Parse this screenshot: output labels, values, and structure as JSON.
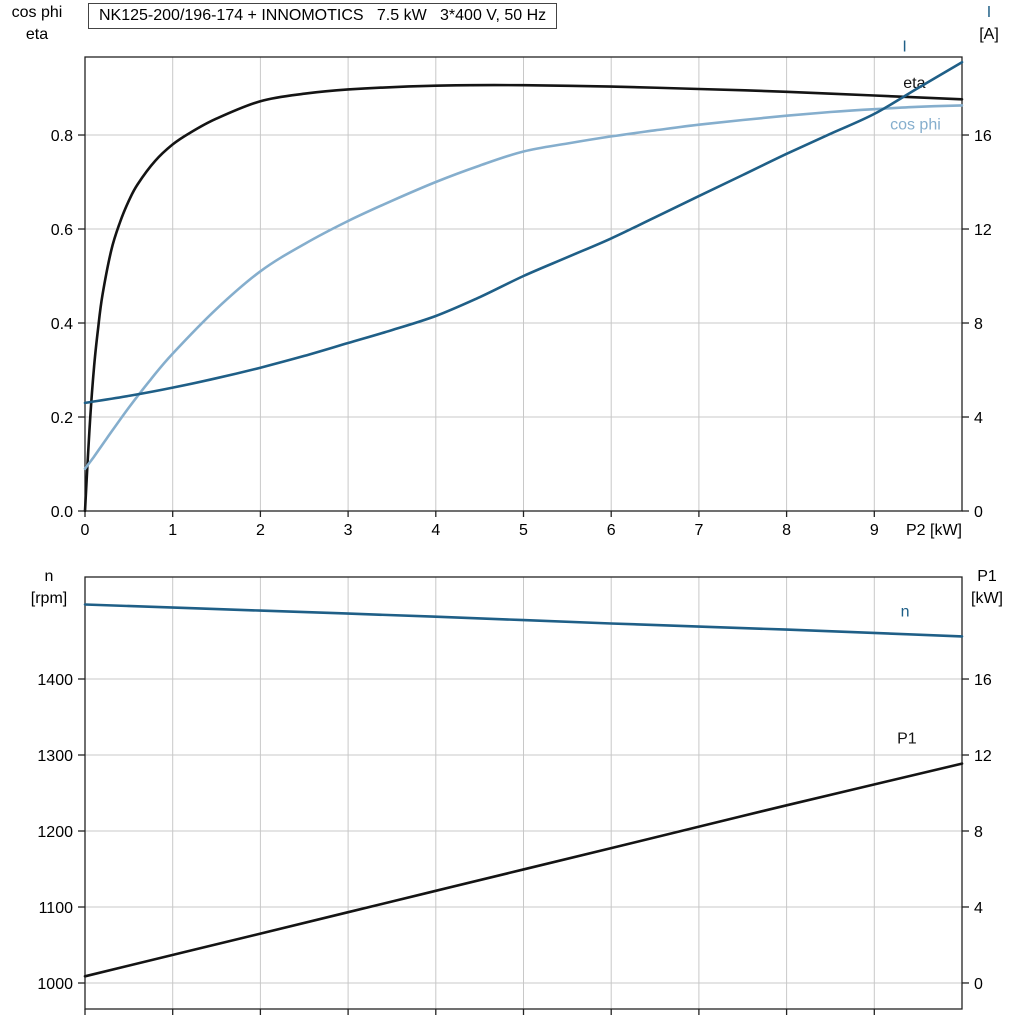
{
  "colors": {
    "black": "#141414",
    "dark_blue": "#1f5f87",
    "light_blue": "#85aecd",
    "grid": "#c8c8c8",
    "frame": "#222222"
  },
  "chart_data": [
    {
      "type": "line",
      "title": "NK125-200/196-174 + INNOMOTICS   7.5 kW   3*400 V, 50 Hz",
      "x_axis": {
        "label": "P2 [kW]",
        "range": [
          0,
          10
        ],
        "ticks": [
          0,
          1,
          2,
          3,
          4,
          5,
          6,
          7,
          8,
          9
        ],
        "show_tick_labels": true
      },
      "left_axis": {
        "label": "cos phi / eta",
        "label_lines": [
          "cos phi",
          "eta"
        ],
        "range": [
          0,
          0.966
        ],
        "ticks": [
          0.0,
          0.2,
          0.4,
          0.6,
          0.8
        ],
        "decimals": 1
      },
      "right_axis": {
        "label": "I [A]",
        "label_lines": [
          "I",
          "[A]"
        ],
        "range": [
          0,
          19.32
        ],
        "ticks": [
          0,
          4,
          8,
          12,
          16
        ],
        "decimals": 0
      },
      "grid": true,
      "legend_position": "right-inline",
      "series": [
        {
          "name": "eta",
          "label": "eta",
          "axis": "left",
          "color": "#141414",
          "x": [
            0,
            0.05,
            0.1,
            0.15,
            0.2,
            0.3,
            0.4,
            0.5,
            0.6,
            0.8,
            1,
            1.2,
            1.5,
            2,
            2.5,
            3,
            4,
            5,
            6,
            7,
            8,
            9,
            10
          ],
          "y": [
            0,
            0.17,
            0.3,
            0.39,
            0.46,
            0.555,
            0.615,
            0.66,
            0.695,
            0.745,
            0.78,
            0.805,
            0.835,
            0.872,
            0.888,
            0.897,
            0.905,
            0.906,
            0.903,
            0.898,
            0.892,
            0.884,
            0.876
          ],
          "label_at": [
            9.33,
            0.9
          ]
        },
        {
          "name": "cos-phi",
          "label": "cos phi",
          "axis": "left",
          "color": "#85aecd",
          "x": [
            0,
            0.1,
            0.25,
            0.5,
            0.75,
            1,
            1.5,
            2,
            2.5,
            3,
            3.5,
            4,
            4.5,
            5,
            5.5,
            6,
            6.5,
            7,
            7.5,
            8,
            8.5,
            9,
            9.5,
            10
          ],
          "y": [
            0.09,
            0.115,
            0.155,
            0.22,
            0.28,
            0.335,
            0.43,
            0.51,
            0.568,
            0.617,
            0.66,
            0.7,
            0.735,
            0.765,
            0.782,
            0.797,
            0.81,
            0.822,
            0.832,
            0.841,
            0.849,
            0.855,
            0.86,
            0.863
          ],
          "label_at": [
            9.18,
            0.812
          ]
        },
        {
          "name": "I",
          "label": "I",
          "axis": "right",
          "color": "#1f5f87",
          "x": [
            0,
            0.5,
            1,
            1.5,
            2,
            2.5,
            3,
            3.5,
            4,
            4.5,
            5,
            5.5,
            6,
            6.5,
            7,
            7.5,
            8,
            8.5,
            9,
            9.5,
            10
          ],
          "y": [
            4.6,
            4.9,
            5.25,
            5.65,
            6.1,
            6.6,
            7.15,
            7.7,
            8.3,
            9.1,
            10.0,
            10.8,
            11.6,
            12.5,
            13.4,
            14.3,
            15.2,
            16.05,
            16.9,
            18.0,
            19.1
          ],
          "label_at": [
            9.32,
            19.55
          ]
        }
      ]
    },
    {
      "type": "line",
      "title": "",
      "x_axis": {
        "label": "",
        "range": [
          0,
          10
        ],
        "ticks": [
          0,
          1,
          2,
          3,
          4,
          5,
          6,
          7,
          8,
          9
        ],
        "show_tick_labels": false
      },
      "left_axis": {
        "label": "n [rpm]",
        "label_lines": [
          "n",
          "[rpm]"
        ],
        "range": [
          965.8,
          1534.2
        ],
        "ticks": [
          1000,
          1100,
          1200,
          1300,
          1400
        ],
        "decimals": 0
      },
      "right_axis": {
        "label": "P1 [kW]",
        "label_lines": [
          "P1",
          "[kW]"
        ],
        "range": [
          -1.37,
          21.37
        ],
        "ticks": [
          0,
          4,
          8,
          12,
          16
        ],
        "decimals": 0
      },
      "grid": true,
      "legend_position": "right-inline",
      "series": [
        {
          "name": "n",
          "label": "n",
          "axis": "left",
          "color": "#1f5f87",
          "x": [
            0,
            2,
            4,
            6,
            8,
            10
          ],
          "y": [
            1498,
            1490,
            1482,
            1473,
            1465,
            1456
          ],
          "label_at": [
            9.3,
            1482
          ]
        },
        {
          "name": "P1",
          "label": "P1",
          "axis": "right",
          "color": "#141414",
          "x": [
            0,
            2,
            4,
            6,
            8,
            10
          ],
          "y": [
            0.35,
            2.6,
            4.85,
            7.1,
            9.35,
            11.55
          ],
          "label_at": [
            9.26,
            12.6
          ]
        }
      ]
    }
  ]
}
